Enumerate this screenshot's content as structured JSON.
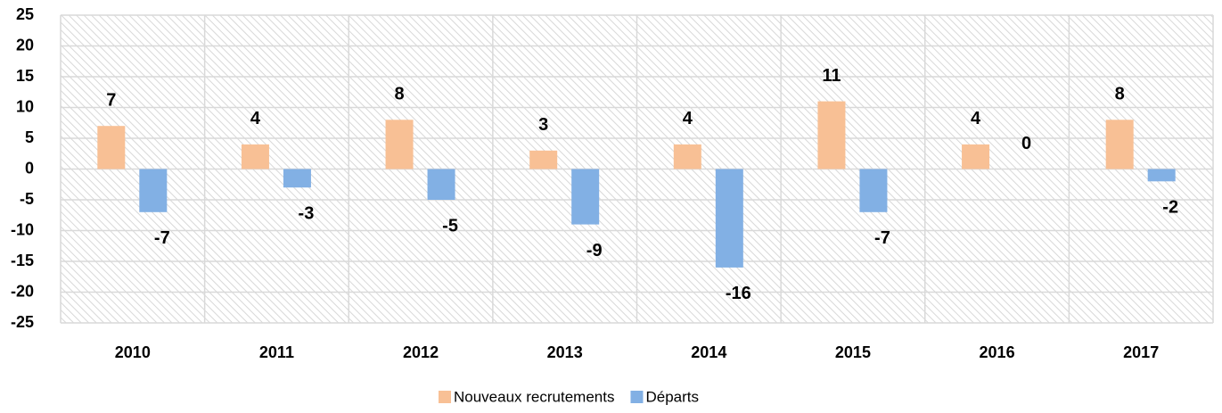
{
  "chart_data": {
    "type": "bar",
    "categories": [
      "2010",
      "2011",
      "2012",
      "2013",
      "2014",
      "2015",
      "2016",
      "2017"
    ],
    "series": [
      {
        "name": "Nouveaux recrutements",
        "color": "#f8c095",
        "values": [
          7,
          4,
          8,
          3,
          4,
          11,
          4,
          8
        ]
      },
      {
        "name": "Départs",
        "color": "#82b0e4",
        "values": [
          -7,
          -3,
          -5,
          -9,
          -16,
          -7,
          0,
          -2
        ]
      }
    ],
    "ylim": [
      -25,
      25
    ],
    "yticks": [
      -25,
      -20,
      -15,
      -10,
      -5,
      0,
      5,
      10,
      15,
      20,
      25
    ],
    "grid": true,
    "legend": "bottom"
  }
}
